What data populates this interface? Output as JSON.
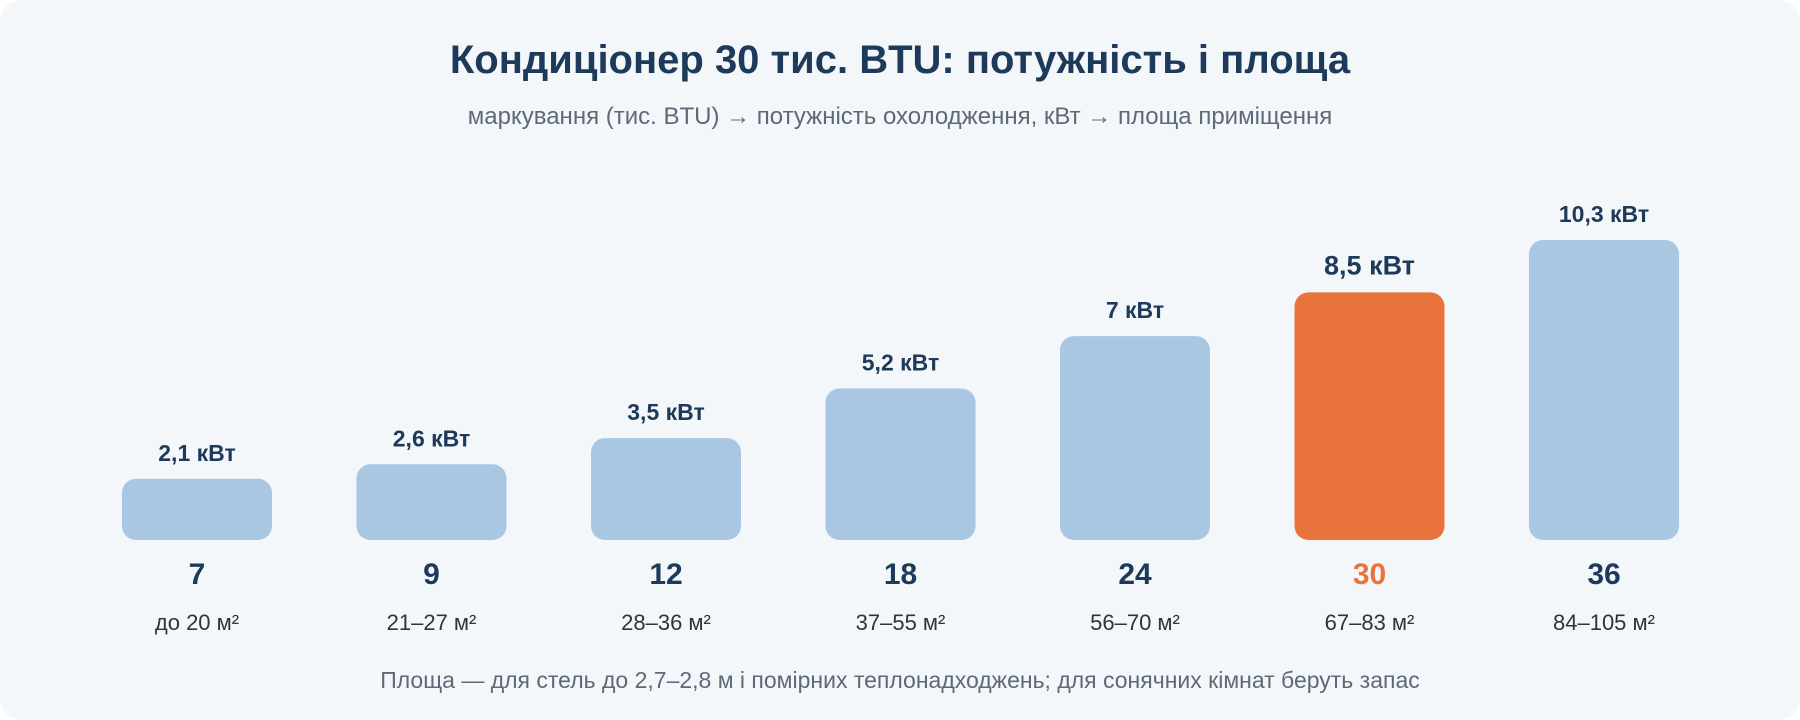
{
  "colors": {
    "background": "#f4f7fa",
    "bar": "#a9c6e3",
    "bar_highlight": "#e8743b",
    "text_dark": "#1e3a5a",
    "text_highlight": "#e8743b",
    "text_muted": "#5d6878"
  },
  "chart_data": {
    "type": "bar",
    "title": "Кондиціонер 30 тис. BTU: потужність і площа",
    "subtitle": "маркування (тис. BTU) → потужність охолодження, кВт → площа приміщення",
    "xlabel": "",
    "ylabel": "",
    "ylim": [
      0,
      10.3
    ],
    "grid": false,
    "legend": "none",
    "categories": [
      "7",
      "9",
      "12",
      "18",
      "24",
      "30",
      "36"
    ],
    "areas": [
      "до 20 м²",
      "21–27 м²",
      "28–36 м²",
      "37–55 м²",
      "56–70 м²",
      "67–83 м²",
      "84–105 м²"
    ],
    "series": [
      {
        "values": [
          2.1,
          2.6,
          3.5,
          5.2,
          7,
          8.5,
          10.3
        ],
        "value_labels": [
          "2,1 кВт",
          "2,6 кВт",
          "3,5 кВт",
          "5,2 кВт",
          "7 кВт",
          "8,5 кВт",
          "10,3 кВт"
        ]
      }
    ],
    "highlight_category": "30",
    "footnote": "Площа — для стель до 2,7–2,8 м і помірних теплонадходжень; для сонячних кімнат беруть запас"
  }
}
